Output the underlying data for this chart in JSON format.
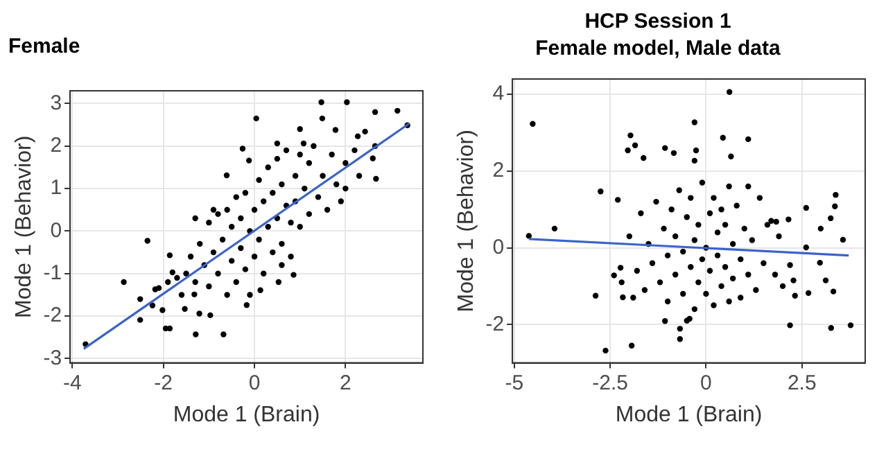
{
  "chart_data": [
    {
      "type": "scatter",
      "title": "Female",
      "xlabel": "Mode 1 (Brain)",
      "ylabel": "Mode 1 (Behavior)",
      "xlim": [
        -4.05,
        3.7
      ],
      "ylim": [
        -3.1,
        3.3
      ],
      "xticks": [
        -4,
        -2,
        0,
        2
      ],
      "yticks": [
        -3,
        -2,
        -1,
        0,
        1,
        2,
        3
      ],
      "grid": true,
      "marker": "circle",
      "series": [
        {
          "color": "#000000",
          "x": [
            -3.71,
            -2.87,
            -2.35,
            -2.51,
            -2.51,
            -2.24,
            -1.95,
            -1.86,
            -2.02,
            -2.18,
            -2.1,
            -1.86,
            -1.8,
            -1.29,
            -0.68,
            -0.97,
            0.04,
            1.47,
            2.03,
            1.49,
            1.78,
            2.65,
            3.14,
            3.36,
            2.67,
            2.6,
            2.0,
            2.65,
            2.27,
            2.43,
            1.08,
            0.5,
            -0.26,
            -0.61,
            -0.12,
            0.13,
            0.86,
            0.53,
            -0.17,
            -1.21,
            -1.53,
            -1.32,
            -1.5,
            -1.4,
            -1.3,
            -1.2,
            -1.1,
            -1.0,
            -1.0,
            -0.9,
            -0.8,
            -0.8,
            -0.7,
            -0.6,
            -0.6,
            -0.5,
            -0.5,
            -0.4,
            -0.4,
            -0.3,
            -0.3,
            -0.2,
            -0.2,
            -0.1,
            -0.1,
            0.0,
            0.0,
            0.1,
            0.1,
            0.2,
            0.2,
            0.3,
            0.3,
            0.4,
            0.4,
            0.5,
            0.5,
            0.6,
            0.6,
            0.7,
            0.7,
            0.8,
            0.8,
            0.9,
            0.9,
            1.0,
            1.0,
            1.1,
            1.2,
            1.2,
            1.3,
            1.4,
            1.5,
            1.6,
            1.7,
            1.8,
            1.9,
            2.0,
            2.2,
            2.3,
            -1.6,
            -1.7,
            -1.9,
            -0.9,
            0.6,
            -1.3,
            1.0
          ],
          "values": [
            -2.66,
            -1.2,
            -0.23,
            -1.6,
            -2.09,
            -1.75,
            -2.29,
            -2.29,
            -1.86,
            -1.37,
            -1.34,
            -0.57,
            -0.97,
            -2.43,
            -2.43,
            -1.98,
            2.65,
            3.03,
            3.03,
            2.65,
            2.38,
            2.8,
            2.83,
            2.49,
            1.23,
            1.71,
            1.0,
            2.0,
            2.23,
            2.34,
            2.06,
            2.06,
            1.94,
            1.31,
            1.66,
            -1.39,
            -1.03,
            -1.2,
            -1.74,
            -1.94,
            -1.83,
            -1.49,
            -1.0,
            -0.6,
            -1.2,
            -0.3,
            -0.8,
            -1.3,
            0.2,
            -0.5,
            -1.0,
            0.4,
            -0.2,
            -1.5,
            0.5,
            -0.7,
            0.1,
            -1.2,
            0.8,
            -0.4,
            0.3,
            -0.9,
            0.9,
            0.0,
            -1.5,
            0.5,
            -0.6,
            1.2,
            -0.2,
            0.7,
            -1.0,
            0.1,
            1.5,
            -0.5,
            0.9,
            0.3,
            1.7,
            -0.3,
            1.1,
            0.6,
            1.9,
            -0.6,
            0.2,
            1.3,
            0.7,
            1.8,
            0.1,
            1.0,
            0.4,
            1.6,
            2.0,
            0.8,
            1.3,
            0.5,
            1.8,
            1.1,
            0.7,
            1.6,
            1.9,
            1.3,
            -1.5,
            -1.1,
            -1.2,
            0.5,
            -0.8,
            0.3,
            2.4
          ]
        },
        {
          "type": "line",
          "color": "#3b63c8",
          "marker": "none",
          "x": [
            -3.75,
            3.4
          ],
          "values": [
            -2.77,
            2.53
          ]
        }
      ]
    },
    {
      "type": "scatter",
      "title": "HCP Session 1\nFemale model, Male data",
      "xlabel": "Mode 1 (Brain)",
      "ylabel": "Mode 1 (Behavior)",
      "xlim": [
        -5.05,
        4.15
      ],
      "ylim": [
        -3.0,
        4.4
      ],
      "xticks": [
        -5,
        -2.5,
        0,
        2.5
      ],
      "yticks": [
        -2,
        0,
        2,
        4
      ],
      "grid": true,
      "marker": "circle",
      "series": [
        {
          "color": "#000000",
          "x": [
            -4.52,
            -4.62,
            -3.95,
            -2.75,
            -2.88,
            -2.62,
            -1.94,
            -1.97,
            -2.04,
            -1.85,
            -1.63,
            -1.07,
            -0.84,
            -0.3,
            -0.26,
            -0.3,
            0.61,
            0.44,
            0.65,
            1.1,
            2.19,
            3.26,
            3.77,
            3.38,
            3.36,
            3.57,
            2.61,
            2.99,
            3.25,
            2.61,
            2.97,
            3.12,
            3.32,
            2.67,
            2.32,
            2.28,
            2.19,
            2.15,
            1.83,
            -0.68,
            -0.68,
            -1.07,
            -0.43,
            -2.4,
            -2.17,
            -2.3,
            -2.23,
            -2.0,
            -1.8,
            -1.7,
            -1.6,
            -1.5,
            -1.4,
            -1.3,
            -1.2,
            -1.1,
            -1.0,
            -1.0,
            -0.9,
            -0.8,
            -0.8,
            -0.7,
            -0.6,
            -0.6,
            -0.5,
            -0.4,
            -0.4,
            -0.3,
            -0.3,
            -0.2,
            -0.2,
            -0.1,
            -0.1,
            0.0,
            0.0,
            0.1,
            0.1,
            0.2,
            0.2,
            0.3,
            0.3,
            0.4,
            0.4,
            0.5,
            0.5,
            0.6,
            0.6,
            0.7,
            0.7,
            0.8,
            0.9,
            0.9,
            1.0,
            1.1,
            1.1,
            1.2,
            1.3,
            1.4,
            1.5,
            1.6,
            1.8,
            1.9,
            2.0,
            1.7,
            -2.2,
            -1.9,
            -0.5
          ],
          "values": [
            3.23,
            0.31,
            0.5,
            1.47,
            -1.25,
            -2.68,
            -2.55,
            2.93,
            2.54,
            2.67,
            2.34,
            2.6,
            2.47,
            3.27,
            2.54,
            2.27,
            4.06,
            2.87,
            2.38,
            2.83,
            -2.02,
            -2.09,
            -2.02,
            1.38,
            1.08,
            0.21,
            1.04,
            0.5,
            0.77,
            0.01,
            -0.39,
            -0.85,
            -1.14,
            -1.18,
            -1.25,
            -0.85,
            -0.45,
            0.74,
            0.68,
            -2.38,
            -2.11,
            -1.91,
            -1.85,
            -0.72,
            -1.29,
            1.25,
            -0.52,
            0.3,
            -0.6,
            0.9,
            -1.1,
            0.1,
            -0.4,
            1.2,
            -0.9,
            0.5,
            -0.2,
            -1.4,
            1.0,
            -0.7,
            0.3,
            1.5,
            -1.2,
            -0.1,
            0.8,
            -0.5,
            1.3,
            -1.6,
            0.2,
            -0.9,
            0.6,
            -0.3,
            1.7,
            0.0,
            -1.2,
            0.9,
            -0.6,
            1.3,
            -1.5,
            0.4,
            -0.2,
            -1.0,
            1.0,
            -0.5,
            0.6,
            -1.4,
            1.6,
            0.1,
            -0.8,
            1.1,
            -0.3,
            -1.3,
            0.5,
            -0.7,
            1.6,
            0.2,
            -1.1,
            1.3,
            -0.4,
            0.6,
            -0.7,
            0.3,
            -1.0,
            0.7,
            -0.9,
            -1.3,
            -1.9
          ]
        },
        {
          "type": "line",
          "color": "#3b63c8",
          "marker": "none",
          "x": [
            -4.62,
            3.72
          ],
          "values": [
            0.23,
            -0.2
          ]
        }
      ]
    }
  ]
}
